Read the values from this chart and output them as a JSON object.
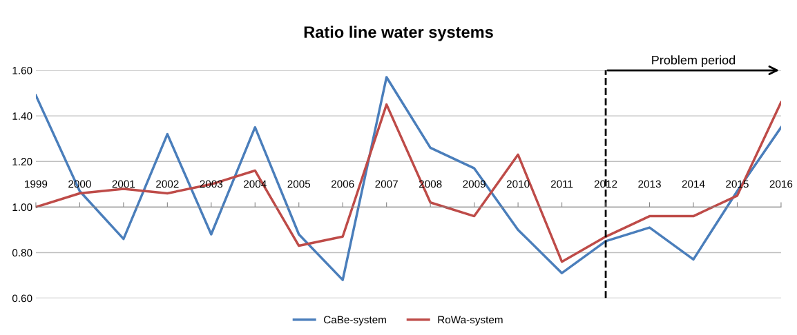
{
  "chart_data": {
    "type": "line",
    "title": "Ratio line water systems",
    "categories": [
      "1999",
      "2000",
      "2001",
      "2002",
      "2003",
      "2004",
      "2005",
      "2006",
      "2007",
      "2008",
      "2009",
      "2010",
      "2011",
      "2012",
      "2013",
      "2014",
      "2015",
      "2016"
    ],
    "series": [
      {
        "name": "CaBe-system",
        "color": "#4a7ebb",
        "values": [
          1.49,
          1.07,
          0.86,
          1.32,
          0.88,
          1.35,
          0.88,
          0.68,
          1.57,
          1.26,
          1.17,
          0.9,
          0.71,
          0.85,
          0.91,
          0.77,
          1.07,
          1.35
        ]
      },
      {
        "name": "RoWa-system",
        "color": "#be4b48",
        "values": [
          1.0,
          1.06,
          1.08,
          1.06,
          1.1,
          1.16,
          0.83,
          0.87,
          1.45,
          1.02,
          0.96,
          1.23,
          0.76,
          0.87,
          0.96,
          0.96,
          1.05,
          1.46
        ]
      }
    ],
    "ylim": [
      0.6,
      1.6
    ],
    "yticks": [
      {
        "value": 0.6,
        "label": "0.60"
      },
      {
        "value": 0.8,
        "label": "0.80"
      },
      {
        "value": 1.0,
        "label": "1.00"
      },
      {
        "value": 1.2,
        "label": "1.20"
      },
      {
        "value": 1.4,
        "label": "1.40"
      },
      {
        "value": 1.6,
        "label": "1.60"
      }
    ],
    "grid": "y",
    "legend": "bottom",
    "marker": "none",
    "line_style": "solid",
    "ref_lines": [
      {
        "axis": "x",
        "value": "2012",
        "color": "#000000",
        "line_style": "dashed"
      }
    ],
    "annotations": [
      "Problem period"
    ]
  }
}
